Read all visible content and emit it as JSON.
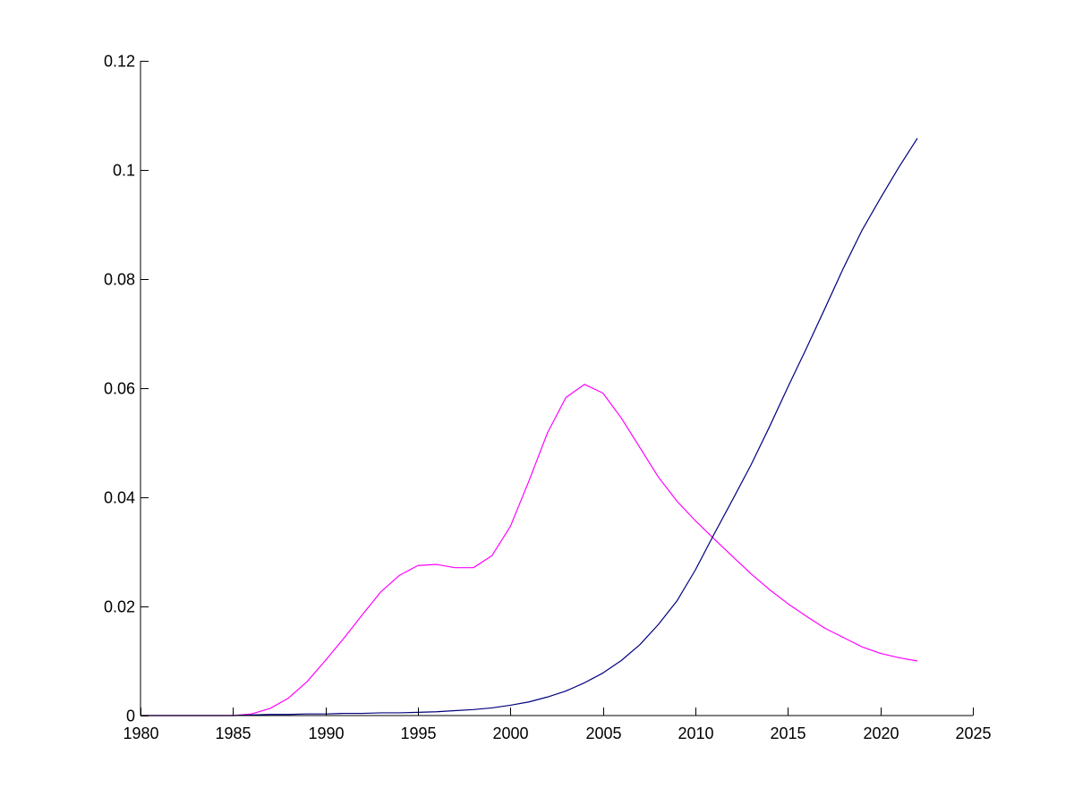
{
  "chart_data": {
    "type": "line",
    "title": "",
    "xlabel": "",
    "ylabel": "",
    "xlim": [
      1980,
      2025
    ],
    "ylim": [
      0,
      0.12
    ],
    "grid": false,
    "legend": "none",
    "x_ticks": [
      1980,
      1985,
      1990,
      1995,
      2000,
      2005,
      2010,
      2015,
      2020,
      2025
    ],
    "x_tick_labels": [
      "1980",
      "1985",
      "1990",
      "1995",
      "2000",
      "2005",
      "2010",
      "2015",
      "2020",
      "2025"
    ],
    "y_ticks": [
      0,
      0.02,
      0.04,
      0.06,
      0.08,
      0.1,
      0.12
    ],
    "y_tick_labels": [
      "0",
      "0.02",
      "0.04",
      "0.06",
      "0.08",
      "0.1",
      "0.12"
    ],
    "series": [
      {
        "color": "#ff00ff",
        "x": [
          1980,
          1981,
          1982,
          1983,
          1984,
          1985,
          1986,
          1987,
          1988,
          1989,
          1990,
          1991,
          1992,
          1993,
          1994,
          1995,
          1996,
          1997,
          1998,
          1999,
          2000,
          2001,
          2002,
          2003,
          2004,
          2005,
          2006,
          2007,
          2008,
          2009,
          2010,
          2011,
          2012,
          2013,
          2014,
          2015,
          2016,
          2017,
          2018,
          2019,
          2020,
          2021,
          2022
        ],
        "y": [
          0,
          0,
          0,
          0,
          0,
          0,
          0.0003,
          0.0013,
          0.0032,
          0.0062,
          0.0101,
          0.0142,
          0.0185,
          0.0227,
          0.0257,
          0.0275,
          0.0277,
          0.0271,
          0.0271,
          0.0293,
          0.0347,
          0.043,
          0.0518,
          0.0583,
          0.0607,
          0.0591,
          0.0545,
          0.0491,
          0.0437,
          0.0393,
          0.0357,
          0.0324,
          0.0292,
          0.026,
          0.0231,
          0.0205,
          0.0182,
          0.016,
          0.0143,
          0.0126,
          0.0114,
          0.0106,
          0.01
        ]
      },
      {
        "color": "#00007f",
        "x": [
          1980,
          1981,
          1982,
          1983,
          1984,
          1985,
          1986,
          1987,
          1988,
          1989,
          1990,
          1991,
          1992,
          1993,
          1994,
          1995,
          1996,
          1997,
          1998,
          1999,
          2000,
          2001,
          2002,
          2003,
          2004,
          2005,
          2006,
          2007,
          2008,
          2009,
          2010,
          2011,
          2012,
          2013,
          2014,
          2015,
          2016,
          2017,
          2018,
          2019,
          2020,
          2021,
          2022
        ],
        "y": [
          0,
          0,
          0,
          0,
          0,
          0,
          0.0001,
          0.0002,
          0.0002,
          0.0003,
          0.0003,
          0.0004,
          0.0004,
          0.0005,
          0.0005,
          0.0006,
          0.0007,
          0.0009,
          0.0011,
          0.0014,
          0.0019,
          0.0025,
          0.0034,
          0.0045,
          0.006,
          0.0078,
          0.0101,
          0.013,
          0.0167,
          0.021,
          0.0267,
          0.0332,
          0.0395,
          0.0459,
          0.0529,
          0.0602,
          0.0673,
          0.0746,
          0.082,
          0.0889,
          0.0948,
          0.1005,
          0.1058
        ]
      }
    ]
  }
}
